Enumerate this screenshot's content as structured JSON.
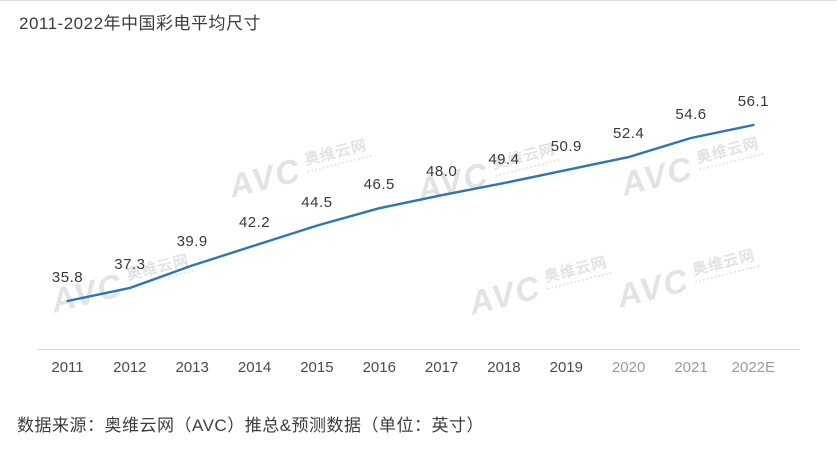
{
  "title": "2011-2022年中国彩电平均尺寸",
  "source_note": "数据来源：奥维云网（AVC）推总&预测数据（单位：英寸）",
  "watermark": {
    "logo": "AVC",
    "name": "奥维云网"
  },
  "colors": {
    "line": "#2e75b6",
    "title_text": "#3c3c3c",
    "label_text": "#383838",
    "axis_line": "#dadada",
    "watermark": "#d2d2d2"
  },
  "chart_data": {
    "type": "line",
    "title": "2011-2022年中国彩电平均尺寸",
    "categories": [
      "2011",
      "2012",
      "2013",
      "2014",
      "2015",
      "2016",
      "2017",
      "2018",
      "2019",
      "2020",
      "2021",
      "2022E"
    ],
    "values": [
      35.8,
      37.3,
      39.9,
      42.2,
      44.5,
      46.5,
      48.0,
      49.4,
      50.9,
      52.4,
      54.6,
      56.1
    ],
    "xlabel": "",
    "ylabel": "",
    "unit": "英寸",
    "ylim": [
      34,
      58
    ],
    "grid": false,
    "legend": "none",
    "data_labels": true,
    "line_color": "#2e75b6",
    "source": "数据来源：奥维云网（AVC）推总&预测数据（单位：英寸）"
  }
}
